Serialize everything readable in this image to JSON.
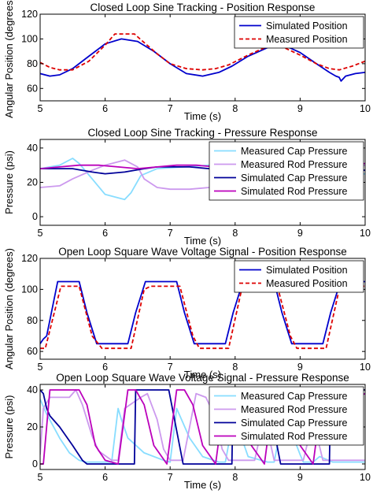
{
  "figure": {
    "background": "#ffffff"
  },
  "chart_data": [
    {
      "type": "line",
      "title": "Closed Loop Sine Tracking - Position Response",
      "xlabel": "Time (s)",
      "ylabel": "Angular Position (degrees)",
      "xlim": [
        5,
        10
      ],
      "ylim": [
        50,
        120
      ],
      "xticks": [
        "5",
        "6",
        "7",
        "8",
        "9",
        "10"
      ],
      "yticks": [
        "60",
        "80",
        "100",
        "120"
      ],
      "legend_position": "top-right",
      "grid": false,
      "series": [
        {
          "name": "Simulated Position",
          "color": "#0000cc",
          "style": "solid",
          "x": [
            5.0,
            5.15,
            5.3,
            5.5,
            5.75,
            6.0,
            6.25,
            6.5,
            6.75,
            7.0,
            7.25,
            7.5,
            7.75,
            7.95,
            8.2,
            8.5,
            8.75,
            9.0,
            9.25,
            9.45,
            9.55,
            9.6,
            9.63,
            9.7,
            9.85,
            10.0
          ],
          "y": [
            72,
            70,
            71,
            76,
            86,
            96,
            100,
            98,
            90,
            80,
            72,
            70,
            73,
            78,
            86,
            93,
            95,
            89,
            80,
            73,
            70,
            69,
            66,
            70,
            72,
            73
          ]
        },
        {
          "name": "Measured Position",
          "color": "#dd0000",
          "style": "dashed",
          "x": [
            5.0,
            5.15,
            5.3,
            5.5,
            5.75,
            6.0,
            6.15,
            6.45,
            6.6,
            6.8,
            7.0,
            7.25,
            7.5,
            7.7,
            7.9,
            8.2,
            8.5,
            8.75,
            9.0,
            9.25,
            9.45,
            9.6,
            9.8,
            10.0
          ],
          "y": [
            81,
            77,
            75,
            75,
            82,
            95,
            104,
            104,
            97,
            88,
            80,
            76,
            75,
            76,
            79,
            87,
            94,
            93,
            87,
            80,
            76,
            75,
            78,
            82
          ]
        }
      ]
    },
    {
      "type": "line",
      "title": "Closed Loop Sine Tracking - Pressure Response",
      "xlabel": "Time (s)",
      "ylabel": "Pressure (psi)",
      "xlim": [
        5,
        10
      ],
      "ylim": [
        -5,
        45
      ],
      "xticks": [
        "5",
        "6",
        "7",
        "8",
        "9",
        "10"
      ],
      "yticks": [
        "0",
        "20",
        "40"
      ],
      "legend_position": "top-right",
      "grid": false,
      "series": [
        {
          "name": "Measured Cap Pressure",
          "color": "#88ddff",
          "style": "solid",
          "x": [
            5.0,
            5.3,
            5.5,
            5.6,
            5.8,
            6.0,
            6.2,
            6.3,
            6.4,
            6.55,
            6.8,
            7.2,
            7.6,
            8.0,
            8.3,
            8.6,
            8.9,
            9.2,
            9.5,
            9.8,
            10.0
          ],
          "y": [
            28,
            30,
            34,
            31,
            22,
            13,
            11,
            10,
            14,
            24,
            28,
            29,
            30,
            31,
            30,
            29,
            27,
            25,
            24,
            24,
            25
          ]
        },
        {
          "name": "Measured Rod Pressure",
          "color": "#cc99ee",
          "style": "solid",
          "x": [
            5.0,
            5.3,
            5.5,
            5.8,
            6.0,
            6.3,
            6.5,
            6.6,
            6.8,
            7.0,
            7.3,
            7.6,
            7.8,
            8.0,
            8.3,
            8.6,
            8.9,
            9.2,
            9.5,
            9.8,
            10.0
          ],
          "y": [
            17,
            18,
            22,
            27,
            30,
            33,
            29,
            22,
            17,
            16,
            16,
            17,
            21,
            26,
            30,
            31,
            32,
            30,
            28,
            27,
            30
          ]
        },
        {
          "name": "Simulated Cap Pressure",
          "color": "#000099",
          "style": "solid",
          "x": [
            5.0,
            5.5,
            5.8,
            6.0,
            6.3,
            6.6,
            6.8,
            7.0,
            7.3,
            7.6,
            7.9,
            8.2,
            8.5,
            8.8,
            9.1,
            9.4,
            9.7,
            10.0
          ],
          "y": [
            28,
            28,
            26,
            25,
            26,
            28,
            29,
            29,
            29,
            28,
            27,
            26,
            26,
            27,
            28,
            29,
            28,
            27
          ]
        },
        {
          "name": "Simulated Rod Pressure",
          "color": "#bb00bb",
          "style": "solid",
          "x": [
            5.0,
            5.3,
            5.6,
            5.9,
            6.2,
            6.5,
            6.8,
            7.1,
            7.4,
            7.7,
            8.0,
            8.3,
            8.6,
            8.9,
            9.2,
            9.5,
            9.8,
            10.0
          ],
          "y": [
            28,
            29,
            30,
            30,
            29,
            28,
            29,
            30,
            30,
            29,
            28,
            28,
            29,
            30,
            30,
            29,
            30,
            31
          ]
        }
      ]
    },
    {
      "type": "line",
      "title": "Open Loop Square Wave Voltage Signal - Position Response",
      "xlabel": "Time (s)",
      "ylabel": "Angular Position (degrees)",
      "xlim": [
        5,
        10
      ],
      "ylim": [
        55,
        120
      ],
      "xticks": [
        "5",
        "6",
        "7",
        "8",
        "9",
        "10"
      ],
      "yticks": [
        "60",
        "80",
        "100",
        "120"
      ],
      "legend_position": "top-right",
      "grid": false,
      "series": [
        {
          "name": "Simulated Position",
          "color": "#0000cc",
          "style": "solid",
          "x": [
            5.0,
            5.05,
            5.1,
            5.27,
            5.6,
            5.72,
            5.87,
            6.35,
            6.47,
            6.62,
            7.1,
            7.22,
            7.37,
            7.85,
            7.97,
            8.12,
            8.6,
            8.72,
            8.87,
            9.35,
            9.47,
            9.62,
            10.0
          ],
          "y": [
            65,
            68,
            70,
            105,
            105,
            85,
            65,
            65,
            85,
            105,
            105,
            85,
            65,
            65,
            85,
            105,
            105,
            85,
            65,
            65,
            85,
            105,
            105
          ]
        },
        {
          "name": "Measured Position",
          "color": "#dd0000",
          "style": "dashed",
          "x": [
            5.0,
            5.08,
            5.32,
            5.6,
            5.8,
            5.95,
            6.4,
            6.6,
            6.7,
            7.15,
            7.35,
            7.45,
            7.9,
            8.1,
            8.2,
            8.65,
            8.85,
            8.95,
            9.4,
            9.6,
            9.7,
            10.0
          ],
          "y": [
            62,
            62,
            102,
            102,
            70,
            62,
            62,
            100,
            102,
            102,
            70,
            62,
            62,
            100,
            102,
            102,
            70,
            62,
            62,
            100,
            102,
            102
          ]
        }
      ]
    },
    {
      "type": "line",
      "title": "Open Loop Square Wave Voltage Signal - Pressure Response",
      "xlabel": "Time (s)",
      "ylabel": "Pressure (psi)",
      "xlim": [
        5,
        10
      ],
      "ylim": [
        -3,
        43
      ],
      "xticks": [
        "5",
        "6",
        "7",
        "8",
        "9",
        "10"
      ],
      "yticks": [
        "0",
        "20",
        "40"
      ],
      "legend_position": "top-right",
      "grid": false,
      "series": [
        {
          "name": "Measured Cap Pressure",
          "color": "#88ddff",
          "style": "solid",
          "x": [
            5.0,
            5.1,
            5.3,
            5.45,
            5.6,
            5.7,
            5.9,
            6.1,
            6.2,
            6.25,
            6.35,
            6.6,
            6.9,
            7.0,
            7.1,
            7.3,
            7.5,
            7.75,
            7.85,
            8.0,
            8.1,
            8.2,
            8.5,
            8.6,
            8.75,
            9.0,
            9.05,
            9.2,
            9.3,
            9.5,
            9.7,
            10.0
          ],
          "y": [
            35,
            27,
            14,
            6,
            2,
            1,
            1,
            1,
            30,
            24,
            14,
            6,
            2,
            1,
            30,
            14,
            4,
            1,
            1,
            30,
            14,
            4,
            1,
            1,
            28,
            5,
            1,
            1,
            4,
            1,
            1,
            1
          ]
        },
        {
          "name": "Measured Rod Pressure",
          "color": "#cc99ee",
          "style": "solid",
          "x": [
            5.0,
            5.05,
            5.15,
            5.45,
            5.55,
            5.65,
            5.8,
            5.9,
            6.1,
            6.2,
            6.3,
            6.55,
            6.65,
            6.8,
            6.9,
            7.0,
            7.2,
            7.4,
            7.55,
            7.7,
            7.8,
            7.9,
            8.05,
            8.3,
            8.45,
            8.6,
            8.7,
            9.05,
            9.2,
            9.35,
            9.45,
            9.55,
            10.0
          ],
          "y": [
            5,
            30,
            36,
            36,
            40,
            32,
            15,
            7,
            2,
            2,
            30,
            36,
            38,
            24,
            8,
            2,
            2,
            38,
            36,
            25,
            8,
            2,
            2,
            2,
            26,
            2,
            2,
            2,
            24,
            2,
            2,
            2,
            2
          ]
        },
        {
          "name": "Simulated Cap Pressure",
          "color": "#000099",
          "style": "solid",
          "x": [
            5.0,
            5.05,
            5.1,
            5.15,
            5.3,
            5.5,
            5.65,
            5.72,
            6.0,
            6.28,
            6.45,
            6.47,
            6.72,
            6.98,
            7.2,
            7.22,
            7.47,
            7.73,
            7.95,
            7.97,
            8.22,
            8.48,
            8.7,
            8.72,
            8.97,
            9.23,
            9.45,
            9.47,
            9.72,
            10.0
          ],
          "y": [
            40,
            38,
            30,
            26,
            20,
            10,
            2,
            0,
            0,
            0,
            0,
            40,
            40,
            40,
            0,
            0,
            0,
            0,
            0,
            40,
            40,
            40,
            0,
            0,
            0,
            0,
            0,
            40,
            40,
            40
          ]
        },
        {
          "name": "Simulated Rod Pressure",
          "color": "#bb00bb",
          "style": "solid",
          "x": [
            5.0,
            5.05,
            5.15,
            5.6,
            5.72,
            5.85,
            6.0,
            6.2,
            6.35,
            6.47,
            6.6,
            6.75,
            6.95,
            7.1,
            7.22,
            7.35,
            7.5,
            7.7,
            7.85,
            7.97,
            8.1,
            8.25,
            8.45,
            8.6,
            8.72,
            8.85,
            9.0,
            9.2,
            9.35,
            9.47,
            9.6,
            10.0
          ],
          "y": [
            0,
            0,
            40,
            40,
            32,
            10,
            2,
            0,
            40,
            40,
            32,
            10,
            0,
            40,
            40,
            32,
            10,
            0,
            40,
            40,
            32,
            10,
            0,
            40,
            40,
            32,
            10,
            0,
            40,
            40,
            32,
            38
          ]
        }
      ]
    }
  ]
}
